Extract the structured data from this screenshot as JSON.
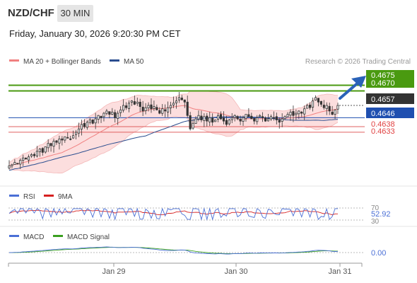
{
  "header": {
    "pair": "NZD/CHF",
    "timeframe": "30 MIN",
    "datetime": "Friday, January 30, 2026 9:20:30 PM CET"
  },
  "legend": {
    "ma20": "MA 20 + Bollinger Bands",
    "ma50": "MA 50",
    "credit": "Research © 2026 Trading Central",
    "colors": {
      "ma20": "#f08080",
      "ma50": "#2a4d8f"
    }
  },
  "price_labels": {
    "target_upper": "0.4675",
    "target_lower": "0.4670",
    "current": "0.4657",
    "pivot": "0.4646",
    "support1": "0.4638",
    "support2": "0.4633"
  },
  "rsi": {
    "legend_rsi": "RSI",
    "legend_9ma": "9MA",
    "level_high": "70",
    "level_low": "30",
    "value": "52.92",
    "colors": {
      "rsi": "#4a6fd6",
      "ma": "#d62020"
    }
  },
  "macd": {
    "legend_macd": "MACD",
    "legend_signal": "MACD Signal",
    "value": "0.00",
    "colors": {
      "macd": "#4a6fd6",
      "signal": "#3aa020"
    }
  },
  "x_axis": {
    "ticks": [
      "Jan 29",
      "Jan 30",
      "Jan 31"
    ]
  },
  "chart_data": {
    "type": "candlestick",
    "symbol": "NZD/CHF",
    "interval": "30 MIN",
    "ylim": [
      0.4595,
      0.4688
    ],
    "levels": [
      {
        "name": "resistance2",
        "value": 0.4675,
        "color": "#4a9a10"
      },
      {
        "name": "resistance1",
        "value": 0.467,
        "color": "#4a9a10"
      },
      {
        "name": "pivot",
        "value": 0.4646,
        "color": "#1f4fb0"
      },
      {
        "name": "support1",
        "value": 0.4638,
        "color": "#e06060"
      },
      {
        "name": "support2",
        "value": 0.4633,
        "color": "#e06060"
      }
    ],
    "current_price": 0.4657,
    "closes": [
      0.4603,
      0.4604,
      0.4606,
      0.4605,
      0.4608,
      0.461,
      0.4609,
      0.4611,
      0.4613,
      0.4612,
      0.4616,
      0.4618,
      0.4615,
      0.462,
      0.4623,
      0.4621,
      0.4625,
      0.4624,
      0.4627,
      0.4626,
      0.4629,
      0.4628,
      0.4627,
      0.463,
      0.4633,
      0.4636,
      0.464,
      0.4638,
      0.4642,
      0.4644,
      0.4641,
      0.4645,
      0.4648,
      0.4646,
      0.465,
      0.4652,
      0.4649,
      0.4651,
      0.4646,
      0.465,
      0.4653,
      0.4657,
      0.4655,
      0.4659,
      0.4661,
      0.4658,
      0.466,
      0.4656,
      0.4652,
      0.4655,
      0.4657,
      0.4654,
      0.4656,
      0.4653,
      0.465,
      0.4654,
      0.4652,
      0.4655,
      0.4657,
      0.4659,
      0.4661,
      0.4664,
      0.4662,
      0.466,
      0.4648,
      0.4636,
      0.4641,
      0.4645,
      0.4648,
      0.4644,
      0.4647,
      0.4643,
      0.4646,
      0.4642,
      0.4644,
      0.4648,
      0.4645,
      0.4643,
      0.464,
      0.4644,
      0.4646,
      0.4648,
      0.4645,
      0.4643,
      0.4646,
      0.4649,
      0.4647,
      0.4645,
      0.4643,
      0.4646,
      0.4648,
      0.4646,
      0.4643,
      0.4645,
      0.4647,
      0.4646,
      0.4644,
      0.4642,
      0.4645,
      0.4647,
      0.4649,
      0.4651,
      0.4648,
      0.465,
      0.4652,
      0.465,
      0.4654,
      0.4657,
      0.4655,
      0.4661,
      0.4664,
      0.466,
      0.4658,
      0.4655,
      0.4657,
      0.4652,
      0.4649,
      0.4653,
      0.4657
    ],
    "rsi_levels": [
      70,
      30
    ],
    "macd_last": 0.0
  }
}
